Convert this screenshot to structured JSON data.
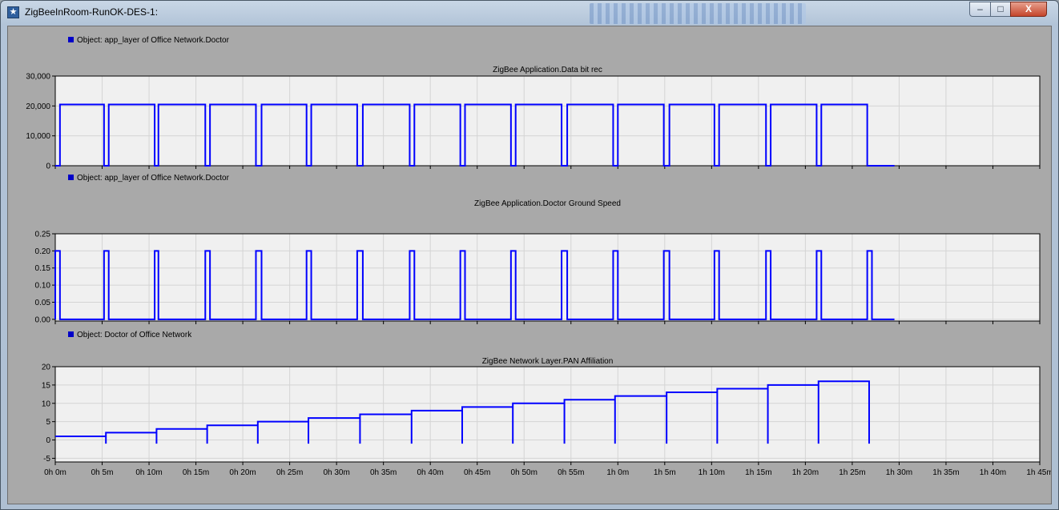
{
  "window": {
    "title": "ZigBeeInRoom-RunOK-DES-1:",
    "minimize_label": "–",
    "maximize_label": "□",
    "close_label": "X",
    "icon": "star-app-icon"
  },
  "colors": {
    "series": "#0000ff",
    "legend_box": "#0000c8",
    "plot_bg": "#f0f0f0",
    "grid": "#d4d4d4"
  },
  "x_axis": {
    "min_minutes": 0,
    "max_minutes": 105,
    "ticks": [
      "0h 0m",
      "0h 5m",
      "0h 10m",
      "0h 15m",
      "0h 20m",
      "0h 25m",
      "0h 30m",
      "0h 35m",
      "0h 40m",
      "0h 45m",
      "0h 50m",
      "0h 55m",
      "1h 0m",
      "1h 5m",
      "1h 10m",
      "1h 15m",
      "1h 20m",
      "1h 25m",
      "1h 30m",
      "1h 35m",
      "1h 40m",
      "1h 45m"
    ]
  },
  "chart_data": [
    {
      "type": "line",
      "legend": "Object: app_layer of Office Network.Doctor",
      "title": "ZigBee Application.Data bit rec",
      "ylim": [
        0,
        30000
      ],
      "yticks": [
        "0",
        "10,000",
        "20,000",
        "30,000"
      ],
      "ytick_values": [
        0,
        10000,
        20000,
        30000
      ],
      "grid": true,
      "x_unit": "minutes",
      "on_level": 20500,
      "high_intervals": [
        [
          0.5,
          5.2
        ],
        [
          5.7,
          10.6
        ],
        [
          11.0,
          16.0
        ],
        [
          16.5,
          21.4
        ],
        [
          22.0,
          26.8
        ],
        [
          27.3,
          32.2
        ],
        [
          32.8,
          37.8
        ],
        [
          38.3,
          43.2
        ],
        [
          43.7,
          48.6
        ],
        [
          49.1,
          54.0
        ],
        [
          54.6,
          59.5
        ],
        [
          60.0,
          64.9
        ],
        [
          65.5,
          70.3
        ],
        [
          70.8,
          75.8
        ],
        [
          76.3,
          81.2
        ],
        [
          81.7,
          86.6
        ]
      ],
      "end_x": 89.5
    },
    {
      "type": "line",
      "legend": "Object: app_layer of Office Network.Doctor",
      "title": "ZigBee Application.Doctor Ground Speed",
      "ylim": [
        -0.005,
        0.25
      ],
      "yticks": [
        "0.00",
        "0.05",
        "0.10",
        "0.15",
        "0.20",
        "0.25"
      ],
      "ytick_values": [
        0,
        0.05,
        0.1,
        0.15,
        0.2,
        0.25
      ],
      "grid": true,
      "x_unit": "minutes",
      "on_level": 0.2,
      "high_intervals": [
        [
          0,
          0.5
        ],
        [
          5.2,
          5.7
        ],
        [
          10.6,
          11.0
        ],
        [
          16.0,
          16.5
        ],
        [
          21.4,
          22.0
        ],
        [
          26.8,
          27.3
        ],
        [
          32.2,
          32.8
        ],
        [
          37.8,
          38.3
        ],
        [
          43.2,
          43.7
        ],
        [
          48.6,
          49.1
        ],
        [
          54.0,
          54.6
        ],
        [
          59.5,
          60.0
        ],
        [
          64.9,
          65.5
        ],
        [
          70.3,
          70.8
        ],
        [
          75.8,
          76.3
        ],
        [
          81.2,
          81.7
        ],
        [
          86.6,
          87.1
        ]
      ],
      "end_x": 89.5
    },
    {
      "type": "line",
      "legend": "Object: Doctor of Office Network",
      "title": "ZigBee Network Layer.PAN Affiliation",
      "ylim": [
        -6,
        20
      ],
      "yticks": [
        "-5",
        "0",
        "5",
        "10",
        "15",
        "20"
      ],
      "ytick_values": [
        -5,
        0,
        5,
        10,
        15,
        20
      ],
      "grid": true,
      "x_unit": "minutes",
      "steps": [
        {
          "x0": 0,
          "x1": 5.4,
          "y": 1
        },
        {
          "x0": 5.4,
          "x1": 10.8,
          "y": 2
        },
        {
          "x0": 10.8,
          "x1": 16.2,
          "y": 3
        },
        {
          "x0": 16.2,
          "x1": 21.6,
          "y": 4
        },
        {
          "x0": 21.6,
          "x1": 27.0,
          "y": 5
        },
        {
          "x0": 27.0,
          "x1": 32.5,
          "y": 6
        },
        {
          "x0": 32.5,
          "x1": 38.0,
          "y": 7
        },
        {
          "x0": 38.0,
          "x1": 43.4,
          "y": 8
        },
        {
          "x0": 43.4,
          "x1": 48.8,
          "y": 9
        },
        {
          "x0": 48.8,
          "x1": 54.3,
          "y": 10
        },
        {
          "x0": 54.3,
          "x1": 59.7,
          "y": 11
        },
        {
          "x0": 59.7,
          "x1": 65.2,
          "y": 12
        },
        {
          "x0": 65.2,
          "x1": 70.6,
          "y": 13
        },
        {
          "x0": 70.6,
          "x1": 76.0,
          "y": 14
        },
        {
          "x0": 76.0,
          "x1": 81.4,
          "y": 15
        },
        {
          "x0": 81.4,
          "x1": 86.8,
          "y": 16
        }
      ],
      "drop_y": -1
    }
  ]
}
